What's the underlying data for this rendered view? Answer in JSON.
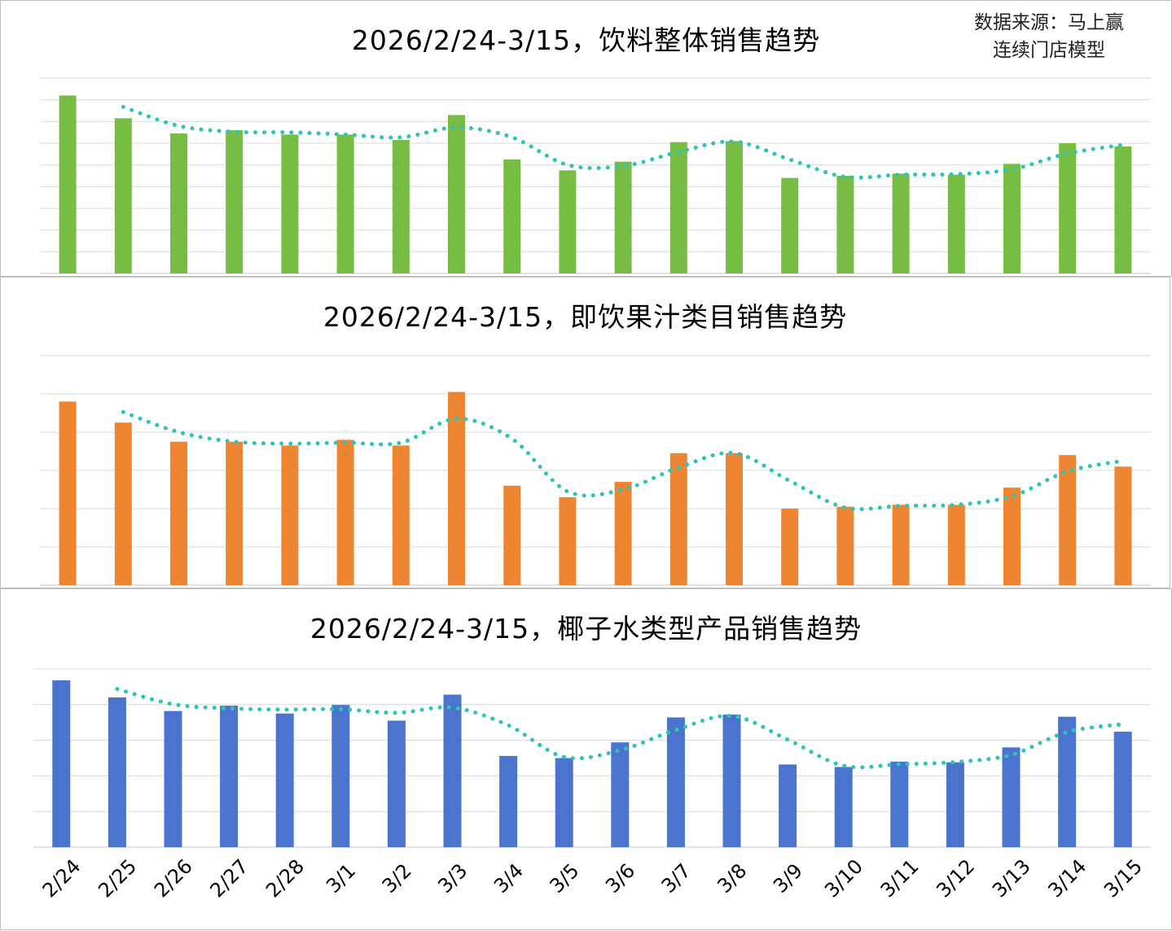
{
  "source_line1": "数据来源：马上赢",
  "source_line2": "连续门店模型",
  "colors": {
    "bar_green": "#77bc43",
    "bar_orange": "#ee8532",
    "bar_blue": "#4a74cd",
    "trend": "#2ec4b6",
    "grid": "#d9d9d9"
  },
  "chart_data": [
    {
      "type": "bar",
      "title": "2026/2/24-3/15，饮料整体销售趋势",
      "categories": [
        "2/24",
        "2/25",
        "2/26",
        "2/27",
        "2/28",
        "3/1",
        "3/2",
        "3/3",
        "3/4",
        "3/5",
        "3/6",
        "3/7",
        "3/8",
        "3/9",
        "3/10",
        "3/11",
        "3/12",
        "3/13",
        "3/14",
        "3/15"
      ],
      "series": [
        {
          "values": [
            82,
            71.5,
            64.5,
            66,
            64,
            64,
            61.5,
            73,
            52.5,
            47.5,
            51.5,
            60.5,
            61,
            44,
            45,
            46,
            45.5,
            50.5,
            60,
            58.5
          ]
        }
      ],
      "trendline": {
        "type": "moving_average",
        "period": 2
      },
      "ylim": [
        0,
        90
      ],
      "grid": true,
      "xaxis_labels_shown": false
    },
    {
      "type": "bar",
      "title": "2026/2/24-3/15，即饮果汁类目销售趋势",
      "categories": [
        "2/24",
        "2/25",
        "2/26",
        "2/27",
        "2/28",
        "3/1",
        "3/2",
        "3/3",
        "3/4",
        "3/5",
        "3/6",
        "3/7",
        "3/8",
        "3/9",
        "3/10",
        "3/11",
        "3/12",
        "3/13",
        "3/14",
        "3/15"
      ],
      "series": [
        {
          "values": [
            48,
            42.5,
            37.5,
            37.5,
            36.5,
            38,
            36.5,
            50.5,
            26,
            23,
            27,
            34.5,
            34.5,
            20,
            20.5,
            21,
            21,
            25.5,
            34,
            31
          ]
        }
      ],
      "trendline": {
        "type": "moving_average",
        "period": 2
      },
      "ylim": [
        0,
        60
      ],
      "grid": true,
      "xaxis_labels_shown": false
    },
    {
      "type": "bar",
      "title": "2026/2/24-3/15，椰子水类型产品销售趋势",
      "categories": [
        "2/24",
        "2/25",
        "2/26",
        "2/27",
        "2/28",
        "3/1",
        "3/2",
        "3/3",
        "3/4",
        "3/5",
        "3/6",
        "3/7",
        "3/8",
        "3/9",
        "3/10",
        "3/11",
        "3/12",
        "3/13",
        "3/14",
        "3/15"
      ],
      "series": [
        {
          "values": [
            4.68,
            4.2,
            3.82,
            3.97,
            3.75,
            3.99,
            3.55,
            4.28,
            2.56,
            2.5,
            2.94,
            3.64,
            3.72,
            2.32,
            2.25,
            2.4,
            2.38,
            2.8,
            3.66,
            3.24
          ]
        }
      ],
      "trendline": {
        "type": "moving_average",
        "period": 2
      },
      "ylim": [
        0,
        5
      ],
      "grid": true,
      "xaxis_labels_shown": true
    }
  ]
}
